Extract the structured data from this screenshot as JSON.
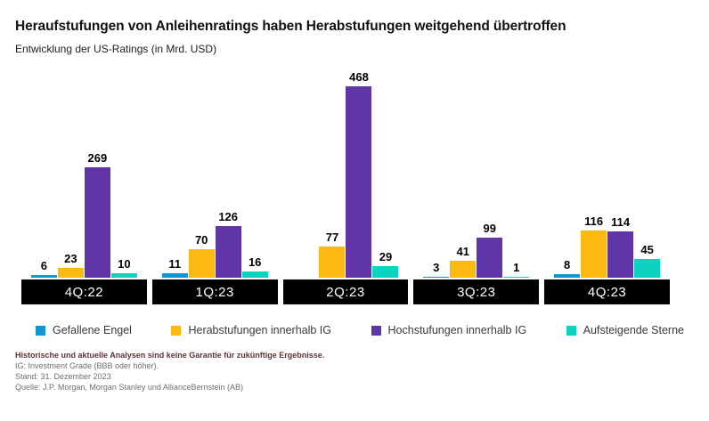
{
  "chart_data": {
    "type": "bar",
    "title": "Heraufstufungen von Anleihenratings haben Herabstufungen weitgehend übertroffen",
    "subtitle": "Entwicklung der US-Ratings (in Mrd. USD)",
    "categories": [
      "4Q:22",
      "1Q:23",
      "2Q:23",
      "3Q:23",
      "4Q:23"
    ],
    "series": [
      {
        "name": "Gefallene Engel",
        "color": "#0e96d5",
        "values": [
          6,
          11,
          0,
          3,
          8
        ]
      },
      {
        "name": "Herabstufungen innerhalb IG",
        "color": "#fdb913",
        "values": [
          23,
          70,
          77,
          41,
          116
        ]
      },
      {
        "name": "Hochstufungen innerhalb IG",
        "color": "#5f35a7",
        "values": [
          269,
          126,
          468,
          99,
          114
        ]
      },
      {
        "name": "Aufsteigende Sterne",
        "color": "#0bd3c0",
        "values": [
          10,
          16,
          29,
          1,
          45
        ]
      }
    ],
    "ylim": [
      0,
      468
    ],
    "grid": false,
    "legend_position": "bottom",
    "value_labels": true,
    "xlabel": "",
    "ylabel": ""
  },
  "axis": {
    "category_box_bg": "#000000",
    "category_box_text_color": "#ffffff"
  },
  "footer": {
    "disclaimer": "Historische und aktuelle Analysen sind keine Garantie für zukünftige Ergebnisse.",
    "ig_note": "IG: Investment Grade (BBB oder höher).",
    "as_of": "Stand: 31. Dezember 2023",
    "source": "Quelle: J.P. Morgan, Morgan Stanley und AllianceBernstein (AB)"
  }
}
